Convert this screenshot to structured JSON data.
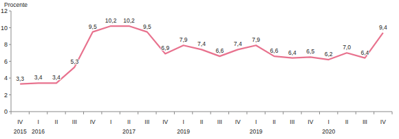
{
  "chart_data": {
    "type": "line",
    "y_label": "Procente",
    "categories": [
      "IV",
      "I",
      "II",
      "III",
      "IV",
      "I",
      "II",
      "III",
      "IV",
      "I",
      "II",
      "III",
      "IV",
      "I",
      "II",
      "III",
      "IV",
      "I",
      "II",
      "III",
      "IV"
    ],
    "year_labels": [
      "2015",
      "2016",
      null,
      null,
      null,
      null,
      "2017",
      null,
      null,
      "2019",
      null,
      null,
      null,
      "2019",
      null,
      null,
      null,
      "2020",
      null,
      null,
      null
    ],
    "values": [
      3.3,
      3.4,
      3.4,
      5.3,
      9.5,
      10.2,
      10.2,
      9.5,
      6.9,
      7.9,
      7.4,
      6.6,
      7.4,
      7.9,
      6.6,
      6.4,
      6.5,
      6.2,
      7.0,
      6.4,
      9.4
    ],
    "value_labels": [
      "3,3",
      "3,4",
      "3,4",
      "5,3",
      "9,5",
      "10,2",
      "10,2",
      "9,5",
      "6,9",
      "7,9",
      "7,4",
      "6,6",
      "7,4",
      "7,9",
      "6,6",
      "6,4",
      "6,5",
      "6,2",
      "7,0",
      "6,4",
      "9,4"
    ],
    "color": "#e8728e",
    "ylim": [
      0,
      12
    ],
    "yticks": [
      0,
      2,
      4,
      6,
      8,
      10,
      12
    ],
    "grid": false,
    "data_labels": true
  }
}
